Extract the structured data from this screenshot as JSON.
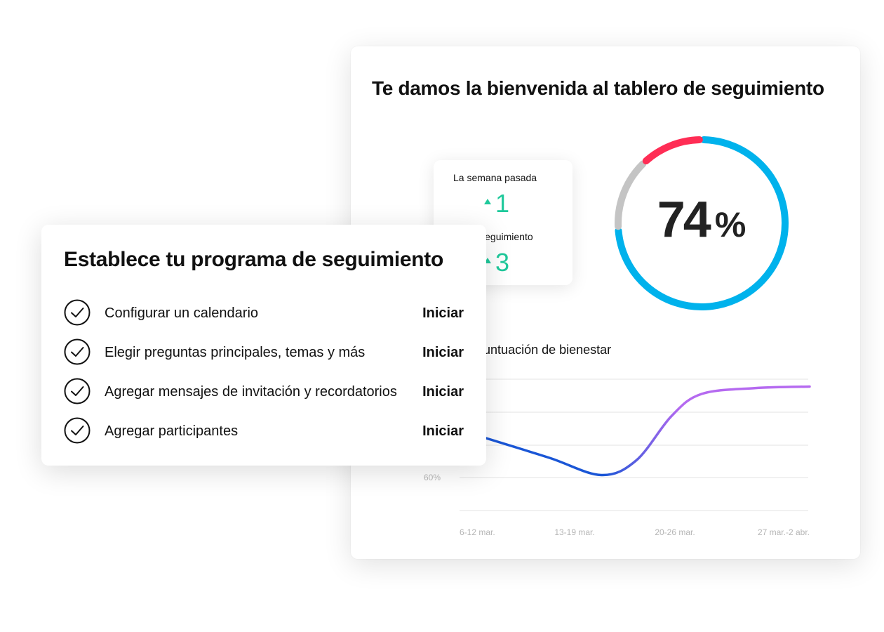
{
  "dashboard": {
    "title": "Te damos la bienvenida al tablero de seguimiento",
    "gauge": {
      "value": 74,
      "unit": "%",
      "segments": [
        {
          "name": "blue",
          "color": "#00b2ec",
          "fraction": 0.74
        },
        {
          "name": "gray",
          "color": "#c4c4c4",
          "fraction": 0.14
        },
        {
          "name": "red",
          "color": "#ff2d55",
          "fraction": 0.12
        }
      ]
    },
    "stats": {
      "last_week_label": "La semana pasada",
      "last_week_value": "1",
      "followups_label": "es de seguimiento",
      "followups_value": "3",
      "trend_color": "#1fc99b"
    }
  },
  "chart_data": {
    "type": "line",
    "title": "s de puntuación de bienestar",
    "categories": [
      "6-12 mar.",
      "13-19 mar.",
      "20-26 mar.",
      "27 mar.-2 abr."
    ],
    "y_tick_labels": [
      "60%"
    ],
    "ylim": [
      60,
      80
    ],
    "grid": true,
    "series": [
      {
        "x": [
          0,
          0.55,
          1,
          1.35,
          1.7,
          2,
          2.5,
          3
        ],
        "values": [
          68,
          64,
          60.5,
          63.5,
          72.5,
          77,
          78.2,
          78.5
        ],
        "gradient_colors": [
          "#1a56d6",
          "#b56af0"
        ]
      }
    ]
  },
  "setup": {
    "title": "Establece tu programa de seguimiento",
    "tasks": [
      {
        "label": "Configurar un calendario",
        "action": "Iniciar"
      },
      {
        "label": "Elegir preguntas principales, temas y más",
        "action": "Iniciar"
      },
      {
        "label": "Agregar mensajes de invitación y recordatorios",
        "action": "Iniciar"
      },
      {
        "label": "Agregar participantes",
        "action": "Iniciar"
      }
    ]
  }
}
